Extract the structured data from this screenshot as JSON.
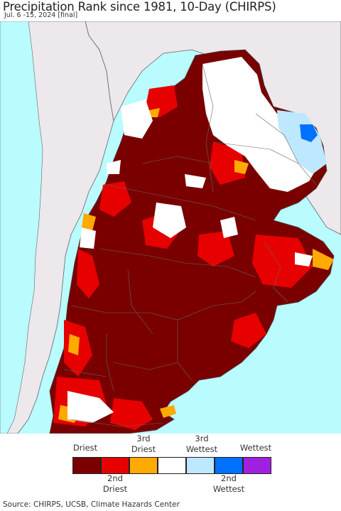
{
  "header": {
    "title": "Precipitation Rank since 1981, 10-Day (CHIRPS)",
    "subtitle": "Jul. 6 -15, 2024 [final]"
  },
  "colors": {
    "ocean": "#b9fbff",
    "outside_land": "#ece8ec",
    "driest": "#7a0000",
    "second_driest": "#e60000",
    "third_driest": "#ffaa00",
    "normal": "#ffffff",
    "third_wettest": "#bee8ff",
    "second_wettest": "#0070ff",
    "wettest": "#a020e0",
    "border": "#555555"
  },
  "legend": {
    "top_labels": [
      "Driest",
      "3rd Driest",
      "3rd Wettest",
      "Wettest"
    ],
    "bottom_labels": [
      "2nd Driest",
      "2nd Wettest"
    ],
    "categories": [
      {
        "name": "driest",
        "color": "#7a0000"
      },
      {
        "name": "second-driest",
        "color": "#e60000"
      },
      {
        "name": "third-driest",
        "color": "#ffaa00"
      },
      {
        "name": "normal",
        "color": "#ffffff"
      },
      {
        "name": "third-wettest",
        "color": "#bee8ff"
      },
      {
        "name": "second-wettest",
        "color": "#0070ff"
      },
      {
        "name": "wettest",
        "color": "#a020e0"
      }
    ]
  },
  "footer": {
    "source": "Source: CHIRPS, UCSB, Climate Hazards Center"
  }
}
